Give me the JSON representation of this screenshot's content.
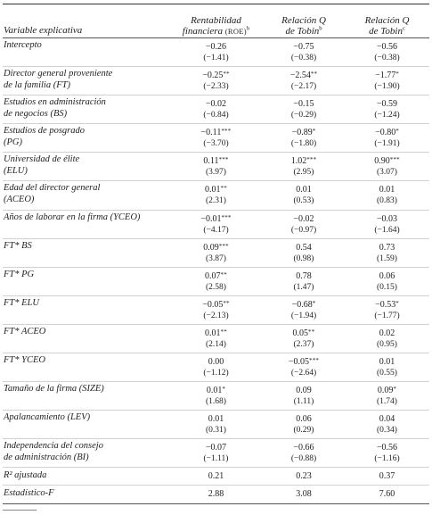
{
  "header": {
    "variable": "Variable explicativa",
    "col1_line1": "Rentabilidad",
    "col1_line2": "financiera",
    "col1_abbrev": "(ROE)",
    "col1_sup": "b",
    "col2_line1": "Relación Q",
    "col2_line2": "de Tobin",
    "col2_sup": "b",
    "col3_line1": "Relación Q",
    "col3_line2": "de Tobin",
    "col3_sup": "c"
  },
  "rows": [
    {
      "label": [
        "Intercepto"
      ],
      "v1": [
        "−0.26",
        ""
      ],
      "p1": "(−1.41)",
      "v2": [
        "−0.75",
        ""
      ],
      "p2": "(−0.38)",
      "v3": [
        "−0.56",
        ""
      ],
      "p3": "(−0.38)"
    },
    {
      "label": [
        "Director general proveniente",
        "de la familia (FT)"
      ],
      "v1": [
        "−0.25",
        "**"
      ],
      "p1": "(−2.33)",
      "v2": [
        "−2.54",
        "**"
      ],
      "p2": "(−2.17)",
      "v3": [
        "−1.77",
        "*"
      ],
      "p3": "(−1.90)"
    },
    {
      "label": [
        "Estudios en administración",
        "de negocios (BS)"
      ],
      "v1": [
        "−0.02",
        ""
      ],
      "p1": "(−0.84)",
      "v2": [
        "−0.15",
        ""
      ],
      "p2": "(−0.29)",
      "v3": [
        "−0.59",
        ""
      ],
      "p3": "(−1.24)"
    },
    {
      "label": [
        "Estudios de posgrado",
        "(PG)"
      ],
      "v1": [
        "−0.11",
        "***"
      ],
      "p1": "(−3.70)",
      "v2": [
        "−0.89",
        "*"
      ],
      "p2": "(−1.80)",
      "v3": [
        "−0.80",
        "*"
      ],
      "p3": "(−1.91)"
    },
    {
      "label": [
        "Universidad de élite",
        "(ELU)"
      ],
      "v1": [
        "0.11",
        "***"
      ],
      "p1": "(3.97)",
      "v2": [
        "1.02",
        "***"
      ],
      "p2": "(2.95)",
      "v3": [
        "0.90",
        "***"
      ],
      "p3": "(3.07)"
    },
    {
      "label": [
        "Edad del director general",
        "(ACEO)"
      ],
      "v1": [
        "0.01",
        "**"
      ],
      "p1": "(2.31)",
      "v2": [
        "0.01",
        ""
      ],
      "p2": "(0.53)",
      "v3": [
        "0.01",
        ""
      ],
      "p3": "(0.83)"
    },
    {
      "label": [
        "Años de laborar en la firma (YCEO)"
      ],
      "v1": [
        "−0.01",
        "***"
      ],
      "p1": "(−4.17)",
      "v2": [
        "−0.02",
        ""
      ],
      "p2": "(−0.97)",
      "v3": [
        "−0.03",
        ""
      ],
      "p3": "(−1.64)"
    },
    {
      "label": [
        "FT* BS"
      ],
      "v1": [
        "0.09",
        "***"
      ],
      "p1": "(3.87)",
      "v2": [
        "0.54",
        ""
      ],
      "p2": "(0.98)",
      "v3": [
        "0.73",
        ""
      ],
      "p3": "(1.59)"
    },
    {
      "label": [
        "FT* PG"
      ],
      "v1": [
        "0.07",
        "**"
      ],
      "p1": "(2.58)",
      "v2": [
        "0.78",
        ""
      ],
      "p2": "(1.47)",
      "v3": [
        "0.06",
        ""
      ],
      "p3": "(0.15)"
    },
    {
      "label": [
        "FT* ELU"
      ],
      "v1": [
        "−0.05",
        "**"
      ],
      "p1": "(−2.13)",
      "v2": [
        "−0.68",
        "*"
      ],
      "p2": "(−1.94)",
      "v3": [
        "−0.53",
        "*"
      ],
      "p3": "(−1.77)"
    },
    {
      "label": [
        "FT* ACEO"
      ],
      "v1": [
        "0.01",
        "**"
      ],
      "p1": "(2.14)",
      "v2": [
        "0.05",
        "**"
      ],
      "p2": "(2.37)",
      "v3": [
        "0.02",
        ""
      ],
      "p3": "(0.95)"
    },
    {
      "label": [
        "FT* YCEO"
      ],
      "v1": [
        "0.00",
        ""
      ],
      "p1": "(−1.12)",
      "v2": [
        "−0.05",
        "***"
      ],
      "p2": "(−2.64)",
      "v3": [
        "0.01",
        ""
      ],
      "p3": "(0.55)"
    },
    {
      "label": [
        "Tamaño de la firma (SIZE)"
      ],
      "v1": [
        "0.01",
        "*"
      ],
      "p1": "(1.68)",
      "v2": [
        "0.09",
        ""
      ],
      "p2": "(1.11)",
      "v3": [
        "0.09",
        "*"
      ],
      "p3": "(1.74)"
    },
    {
      "label": [
        "Apalancamiento (LEV)"
      ],
      "v1": [
        "0.01",
        ""
      ],
      "p1": "(0.31)",
      "v2": [
        "0.06",
        ""
      ],
      "p2": "(0.29)",
      "v3": [
        "0.04",
        ""
      ],
      "p3": "(0.34)"
    },
    {
      "label": [
        "Independencia del consejo",
        "de administración (BI)"
      ],
      "v1": [
        "−0.07",
        ""
      ],
      "p1": "(−1.11)",
      "v2": [
        "−0.66",
        ""
      ],
      "p2": "(−0.88)",
      "v3": [
        "−0.56",
        ""
      ],
      "p3": "(−1.16)"
    }
  ],
  "footer_rows": [
    {
      "label": "R² ajustada",
      "v1": "0.21",
      "v2": "0.23",
      "v3": "0.37"
    },
    {
      "label": "Estadístico-F",
      "v1": "2.88",
      "v2": "3.08",
      "v3": "7.60"
    }
  ]
}
